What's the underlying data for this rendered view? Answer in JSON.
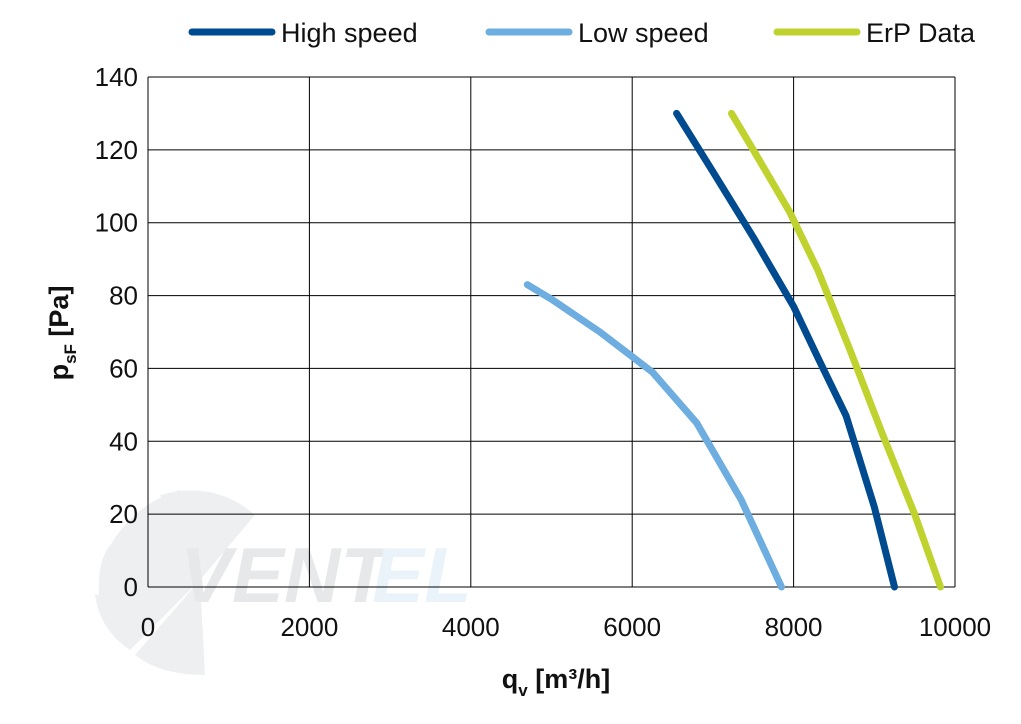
{
  "chart_data": {
    "type": "line",
    "xlabel": {
      "main": "q",
      "sub": "v",
      "unit": " [m³/h]"
    },
    "ylabel": {
      "main": "p",
      "sub": "sF",
      "unit": " [Pa]"
    },
    "xlim": [
      0,
      10000
    ],
    "ylim": [
      0,
      140
    ],
    "xticks": [
      "0",
      "2000",
      "4000",
      "6000",
      "8000",
      "10000"
    ],
    "yticks": [
      "0",
      "20",
      "40",
      "60",
      "80",
      "100",
      "120",
      "140"
    ],
    "grid": true,
    "legend_position": "top",
    "series": [
      {
        "name": "High speed",
        "color": "#004a8f",
        "x": [
          6550,
          7000,
          7500,
          8000,
          8300,
          8650,
          9000,
          9250
        ],
        "y": [
          130,
          114,
          96,
          77,
          63,
          47,
          22,
          0
        ]
      },
      {
        "name": "Low speed",
        "color": "#6dade0",
        "x": [
          4700,
          5000,
          5600,
          6250,
          6800,
          7350,
          7850
        ],
        "y": [
          83,
          79,
          70,
          59,
          45,
          24,
          0
        ]
      },
      {
        "name": "ErP Data",
        "color": "#bfd22d",
        "x": [
          7230,
          7500,
          7950,
          8300,
          8700,
          9100,
          9500,
          9820
        ],
        "y": [
          130,
          120,
          103,
          87,
          65,
          42,
          20,
          0
        ]
      }
    ]
  },
  "watermark": {
    "brand_dark": "VENT",
    "brand_light": "EL"
  }
}
